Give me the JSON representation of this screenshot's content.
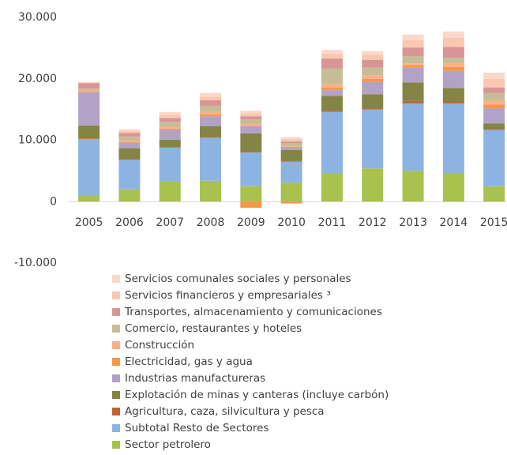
{
  "chart_data": {
    "type": "stacked-bar",
    "categories": [
      "2005",
      "2006",
      "2007",
      "2008",
      "2009",
      "2010",
      "2011",
      "2012",
      "2013",
      "2014",
      "2015"
    ],
    "series": [
      {
        "name": "Sector petrolero",
        "color": "#a9c14f",
        "values": [
          1000,
          2000,
          3300,
          3400,
          2500,
          3100,
          4600,
          5400,
          5000,
          4600,
          2500
        ]
      },
      {
        "name": "Subtotal Resto de Sectores",
        "color": "#8db3e2",
        "values": [
          9200,
          4800,
          5500,
          7000,
          5500,
          3400,
          10000,
          9600,
          11000,
          11400,
          9200
        ]
      },
      {
        "name": "Agricultura, caza, silvicultura y pesca",
        "color": "#c0632c",
        "values": [
          100,
          100,
          100,
          100,
          100,
          100,
          200,
          200,
          400,
          300,
          100
        ]
      },
      {
        "name": "Explotación de minas y canteras (incluye carbón)",
        "color": "#848444",
        "values": [
          2100,
          1800,
          1200,
          1800,
          3000,
          1800,
          2400,
          2300,
          3000,
          2200,
          900
        ]
      },
      {
        "name": "Industrias manufactureras",
        "color": "#b3a2c7",
        "values": [
          5400,
          900,
          1600,
          1600,
          1200,
          500,
          1000,
          2000,
          2400,
          2800,
          2500
        ]
      },
      {
        "name": "Electricidad, gas y agua",
        "color": "#f79646",
        "values": [
          100,
          100,
          200,
          300,
          -1000,
          -300,
          400,
          500,
          400,
          600,
          600
        ]
      },
      {
        "name": "Construcción",
        "color": "#fab08a",
        "values": [
          200,
          300,
          300,
          400,
          400,
          200,
          600,
          600,
          300,
          700,
          700
        ]
      },
      {
        "name": "Comercio, restaurantes y hoteles",
        "color": "#c4bd97",
        "values": [
          300,
          600,
          800,
          1000,
          700,
          400,
          2500,
          1200,
          1200,
          800,
          1200
        ]
      },
      {
        "name": "Transportes, almacenamiento y comunicaciones",
        "color": "#d99594",
        "values": [
          900,
          600,
          600,
          900,
          500,
          300,
          1600,
          1300,
          1400,
          1800,
          900
        ]
      },
      {
        "name": "Servicios financieros y empresariales ³",
        "color": "#f9c8b0",
        "values": [
          100,
          300,
          500,
          600,
          500,
          400,
          800,
          800,
          1200,
          1500,
          1400
        ]
      },
      {
        "name": "Servicios comunales sociales y personales",
        "color": "#fbd8ca",
        "values": [
          100,
          300,
          500,
          600,
          400,
          300,
          600,
          600,
          900,
          1000,
          1000
        ]
      }
    ],
    "ylim": [
      -10000,
      30000
    ],
    "yticks": [
      {
        "value": -10000,
        "label": "-10.000"
      },
      0,
      {
        "value": 10000,
        "label": "10.000"
      },
      {
        "value": 20000,
        "label": "20.000"
      },
      {
        "value": 30000,
        "label": "30.000"
      }
    ],
    "grid": false
  }
}
